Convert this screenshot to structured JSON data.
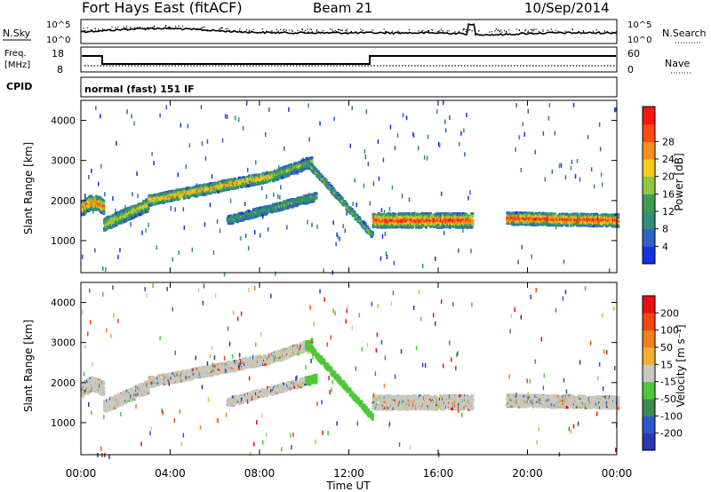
{
  "header": {
    "title": "Fort Hays East (fitACF)",
    "beam": "Beam 21",
    "date": "10/Sep/2014"
  },
  "top_panels": {
    "nsky_label": "N.Sky",
    "nsearch_label": "N.Search",
    "noise_ticks": [
      "10^5",
      "10^0"
    ],
    "freq_label_line1": "Freq.",
    "freq_label_line2": "[MHz]",
    "freq_ticks": [
      18,
      8
    ],
    "nave_label": "Nave",
    "nave_ticks": [
      60,
      0
    ],
    "cpid_label": "CPID",
    "cpid_text": "normal (fast) 151 IF"
  },
  "chart_data": [
    {
      "type": "heatmap",
      "name": "Power",
      "ylabel": "Slant Range [km]",
      "ylim": [
        200,
        4500
      ],
      "yticks": [
        1000,
        2000,
        3000,
        4000
      ],
      "xlim": [
        0,
        24
      ],
      "colorbar": {
        "label": "Power [dB]",
        "ticks": [
          4,
          8,
          12,
          16,
          20,
          24,
          28
        ],
        "colors": [
          "#1530e0",
          "#2f62c4",
          "#2e8f7a",
          "#3f9a52",
          "#8ec840",
          "#f2cc1e",
          "#f79018",
          "#ff4c10",
          "#ff1410"
        ]
      }
    },
    {
      "type": "heatmap",
      "name": "Velocity",
      "ylabel": "Slant Range [km]",
      "ylim": [
        200,
        4500
      ],
      "yticks": [
        1000,
        2000,
        3000,
        4000
      ],
      "xlim": [
        0,
        24
      ],
      "colorbar": {
        "label": "Velocity [m s⁻¹]",
        "ticks": [
          200,
          100,
          50,
          15,
          -15,
          -50,
          -100,
          -200
        ],
        "colors": [
          "#2838b0",
          "#2c56d0",
          "#3c8a50",
          "#4cc838",
          "#c8c8c0",
          "#f2b030",
          "#f08018",
          "#f04810",
          "#e81010"
        ]
      }
    }
  ],
  "x_axis": {
    "ticks": [
      "00:00",
      "04:00",
      "08:00",
      "12:00",
      "16:00",
      "20:00",
      "00:00"
    ],
    "label": "Time UT"
  }
}
